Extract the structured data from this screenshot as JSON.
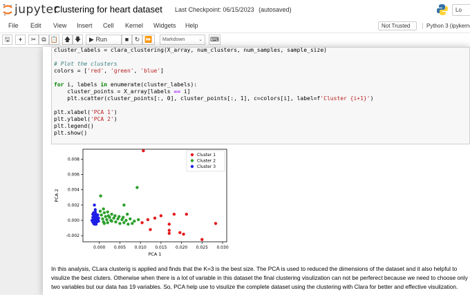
{
  "header": {
    "logo_text": "jupyter",
    "title": "Clustering for heart dataset",
    "checkpoint_label": "Last Checkpoint: 06/15/2023",
    "autosave": "(autosaved)",
    "logout_label": "Lo"
  },
  "menu": {
    "items": [
      "File",
      "Edit",
      "View",
      "Insert",
      "Cell",
      "Kernel",
      "Widgets",
      "Help"
    ],
    "trusted": "Not Trusted",
    "kernel": "Python 3 (ipykerne"
  },
  "toolbar": {
    "run_label": "Run",
    "cell_type": "Markdown"
  },
  "code_lines": [
    "cluster_labels = clara_clustering(X_array, num_clusters, num_samples, sample_size)",
    "",
    "# Plot the clusters",
    "colors = ['red', 'green', 'blue']",
    "",
    "for i, labels in enumerate(cluster_labels):",
    "    cluster_points = X_array[labels == i]",
    "    plt.scatter(cluster_points[:, 0], cluster_points[:, 1], c=colors[i], label=f'Cluster {i+1}')",
    "",
    "plt.xlabel('PCA 1')",
    "plt.ylabel('PCA 2')",
    "plt.legend()",
    "plt.show()"
  ],
  "chart_data": {
    "type": "scatter",
    "xlabel": "PCA 1",
    "ylabel": "PCA 2",
    "xlim": [
      -0.004,
      0.031
    ],
    "ylim": [
      -0.0028,
      0.0093
    ],
    "xticks": [
      "0.000",
      "0.005",
      "0.010",
      "0.015",
      "0.020",
      "0.025",
      "0.030"
    ],
    "yticks": [
      "-0.002",
      "0.000",
      "0.002",
      "0.004",
      "0.006",
      "0.008"
    ],
    "legend_position": "top-right",
    "series": [
      {
        "name": "Cluster 1",
        "color": "#e41a1c",
        "points": [
          [
            0.0104,
            -0.0003
          ],
          [
            0.0118,
            0.0001
          ],
          [
            0.0135,
            0.0003
          ],
          [
            0.015,
            0.0006
          ],
          [
            0.0124,
            -0.0012
          ],
          [
            0.017,
            -0.0005
          ],
          [
            0.017,
            -0.0013
          ],
          [
            0.017,
            -0.0017
          ],
          [
            0.0182,
            0.0008
          ],
          [
            0.0196,
            -0.0016
          ],
          [
            0.0205,
            -0.0018
          ],
          [
            0.0212,
            0.0008
          ],
          [
            0.025,
            -0.0025
          ],
          [
            0.0283,
            -0.0004
          ],
          [
            0.0107,
            0.0091
          ]
        ]
      },
      {
        "name": "Cluster 2",
        "color": "#2ca02c",
        "points": [
          [
            0.0092,
            0.0043
          ],
          [
            0.0003,
            0.0032
          ],
          [
            0.006,
            0.002
          ],
          [
            0.001,
            0.0015
          ],
          [
            0.0002,
            0.0012
          ],
          [
            0.0012,
            0.001
          ],
          [
            0.002,
            0.0011
          ],
          [
            0.003,
            0.0008
          ],
          [
            0.0005,
            0.0007
          ],
          [
            0.0015,
            0.0005
          ],
          [
            0.0025,
            0.0004
          ],
          [
            0.0035,
            0.0003
          ],
          [
            0.0045,
            0.0002
          ],
          [
            0.0055,
            0.0001
          ],
          [
            0.0065,
            0.0
          ],
          [
            0.0075,
            0.0002
          ],
          [
            0.0085,
            -0.0001
          ],
          [
            0.0095,
            0.0001
          ],
          [
            0.004,
            -0.0002
          ],
          [
            0.005,
            -0.0004
          ],
          [
            0.006,
            -0.0003
          ],
          [
            0.003,
            -0.0001
          ],
          [
            0.002,
            -0.0003
          ],
          [
            0.001,
            -0.0002
          ],
          [
            0.0008,
            0.0002
          ],
          [
            0.0018,
            0.0001
          ],
          [
            0.0028,
            0.0
          ],
          [
            0.007,
            -0.0005
          ],
          [
            0.008,
            -0.0004
          ],
          [
            0.0038,
            0.0006
          ],
          [
            0.0048,
            0.0005
          ],
          [
            0.0058,
            0.0004
          ],
          [
            0.0012,
            -0.0004
          ],
          [
            0.0022,
            0.0006
          ],
          [
            0.0068,
            0.0008
          ]
        ]
      },
      {
        "name": "Cluster 3",
        "color": "#1f1fe6",
        "points": [
          [
            -0.0012,
            0.002
          ],
          [
            -0.001,
            0.0014
          ],
          [
            -0.0014,
            0.001
          ],
          [
            -0.0008,
            0.0008
          ],
          [
            -0.0012,
            0.0006
          ],
          [
            -0.0016,
            0.0004
          ],
          [
            -0.001,
            0.0003
          ],
          [
            -0.0014,
            0.0001
          ],
          [
            -0.0008,
            0.0
          ],
          [
            -0.0012,
            -0.0001
          ],
          [
            -0.0016,
            -0.0002
          ],
          [
            -0.001,
            -0.0003
          ],
          [
            -0.0014,
            -0.0004
          ],
          [
            -0.0006,
            -0.0002
          ],
          [
            -0.0004,
            0.0002
          ],
          [
            -0.0006,
            0.0005
          ],
          [
            -0.0018,
            0.0
          ],
          [
            -0.0002,
            -0.0001
          ],
          [
            -0.0008,
            -0.0005
          ],
          [
            -0.0004,
            0.0007
          ],
          [
            -0.0016,
            0.0008
          ],
          [
            -0.001,
            0.0011
          ],
          [
            -0.0012,
            -0.0005
          ],
          [
            -0.0002,
            0.0003
          ]
        ]
      }
    ]
  },
  "markdown": "In this analysis, CLara clusterig is applied and finds that the K=3 is the best size. The PCA is used to reduced the dimensions of the dataset and it also helpful to visulize the best cluters. Otherwise when there is a lot of variable in this dataset the final clustering visulization can not be perferect because we need to choose only two variables but our data has 19 variables. So, PCA help use to visulize the complete dataset using the clustering with Clara for better and effective visulization."
}
